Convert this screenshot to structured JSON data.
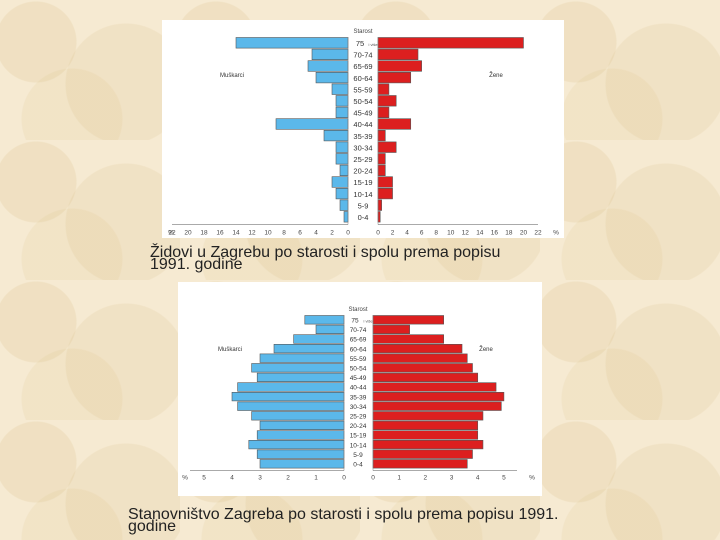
{
  "chart_data": [
    {
      "type": "bar",
      "categories": [
        "75 i više",
        "70-74",
        "65-69",
        "60-64",
        "55-59",
        "50-54",
        "45-49",
        "40-44",
        "35-39",
        "30-34",
        "25-29",
        "20-24",
        "15-19",
        "10-14",
        "5-9",
        "0-4"
      ],
      "category_axis_title": "Starost",
      "series": [
        {
          "name": "Muškarci",
          "values": [
            14,
            4.5,
            5,
            4,
            2,
            1.5,
            1.5,
            9,
            3,
            1.5,
            1.5,
            1,
            2,
            1.5,
            1,
            0.5
          ]
        },
        {
          "name": "Žene",
          "values": [
            20,
            5.5,
            6,
            4.5,
            1.5,
            2.5,
            1.5,
            4.5,
            1,
            2.5,
            1,
            1,
            2,
            2,
            0.5,
            0.3
          ]
        }
      ],
      "x_ticks_left": [
        "%",
        "22",
        "20",
        "18",
        "16",
        "14",
        "12",
        "10",
        "8",
        "6",
        "4",
        "2",
        "0"
      ],
      "x_ticks_right": [
        "0",
        "2",
        "4",
        "6",
        "8",
        "10",
        "12",
        "14",
        "16",
        "18",
        "20",
        "22",
        "%"
      ],
      "xlim": [
        0,
        22
      ],
      "legend": "inline",
      "title": ""
    },
    {
      "type": "bar",
      "categories": [
        "75 i više",
        "70-74",
        "65-69",
        "60-64",
        "55-59",
        "50-54",
        "45-49",
        "40-44",
        "35-39",
        "30-34",
        "25-29",
        "20-24",
        "15-19",
        "10-14",
        "5-9",
        "0-4"
      ],
      "category_axis_title": "Starost",
      "series": [
        {
          "name": "Muškarci",
          "values": [
            1.4,
            1.0,
            1.8,
            2.5,
            3.0,
            3.3,
            3.1,
            3.8,
            4.0,
            3.8,
            3.3,
            3.0,
            3.1,
            3.4,
            3.1,
            3.0
          ]
        },
        {
          "name": "Žene",
          "values": [
            2.7,
            1.4,
            2.7,
            3.4,
            3.6,
            3.8,
            4.0,
            4.7,
            5.0,
            4.9,
            4.2,
            4.0,
            4.0,
            4.2,
            3.8,
            3.6
          ]
        }
      ],
      "x_ticks_left": [
        "%",
        "5",
        "4",
        "3",
        "2",
        "1",
        "0"
      ],
      "x_ticks_right": [
        "0",
        "1",
        "2",
        "3",
        "4",
        "5",
        "%"
      ],
      "xlim": [
        0,
        5.5
      ],
      "legend": "inline",
      "title": ""
    }
  ],
  "captions": {
    "top_line1": "Židovi u Zagrebu po starosti i spolu prema popisu",
    "top_line2": "1991. godine",
    "bottom_line1": "Stanovništvo Zagreba po starosti i spolu prema popisu 1991.",
    "bottom_line2": "godine"
  },
  "colors": {
    "male": "#5bb8ea",
    "female": "#dc1f1f",
    "outline": "#555555"
  }
}
